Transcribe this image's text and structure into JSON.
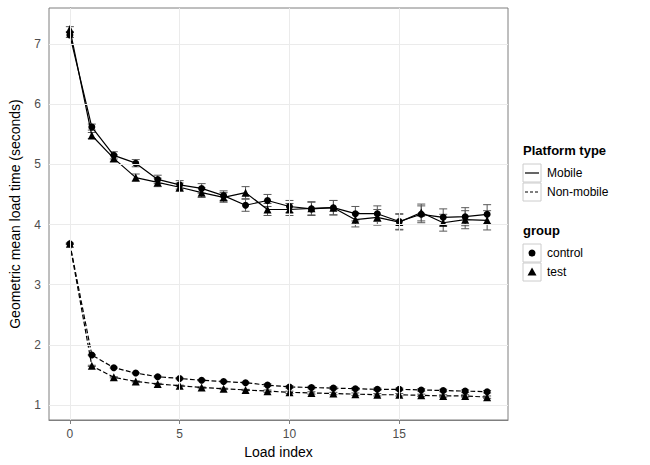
{
  "chart_data": {
    "type": "line",
    "x_label": "Load index",
    "y_label": "Geometric mean load time (seconds)",
    "x": [
      0,
      1,
      2,
      3,
      4,
      5,
      6,
      7,
      8,
      9,
      10,
      11,
      12,
      13,
      14,
      15,
      16,
      17,
      18,
      19
    ],
    "xlim": [
      -0.95,
      19.95
    ],
    "xticks": [
      0,
      5,
      10,
      15
    ],
    "ylim": [
      0.75,
      7.6
    ],
    "yticks": [
      1,
      2,
      3,
      4,
      5,
      6,
      7
    ],
    "grid": true,
    "legend": "right",
    "legend_groups": [
      {
        "title": "Platform type",
        "entries": [
          {
            "label": "Mobile",
            "line_style": "solid"
          },
          {
            "label": "Non-mobile",
            "line_style": "dashed"
          }
        ]
      },
      {
        "title": "group",
        "entries": [
          {
            "label": "control",
            "marker": "circle"
          },
          {
            "label": "test",
            "marker": "triangle"
          }
        ]
      }
    ],
    "series": [
      {
        "platform": "Mobile",
        "group": "control",
        "color": "#000000",
        "line_style": "solid",
        "marker": "circle",
        "values": [
          7.15,
          5.62,
          5.15,
          5.02,
          4.75,
          4.66,
          4.6,
          4.48,
          4.32,
          4.4,
          4.3,
          4.26,
          4.28,
          4.18,
          4.18,
          4.05,
          4.17,
          4.12,
          4.13,
          4.17
        ],
        "error": [
          0.04,
          0.05,
          0.06,
          0.06,
          0.07,
          0.07,
          0.08,
          0.08,
          0.1,
          0.1,
          0.1,
          0.11,
          0.12,
          0.12,
          0.13,
          0.13,
          0.14,
          0.14,
          0.15,
          0.16
        ]
      },
      {
        "platform": "Mobile",
        "group": "test",
        "color": "#000000",
        "line_style": "solid",
        "marker": "triangle",
        "values": [
          7.25,
          5.48,
          5.1,
          4.78,
          4.7,
          4.62,
          4.53,
          4.45,
          4.53,
          4.25,
          4.25,
          4.27,
          4.28,
          4.08,
          4.12,
          4.04,
          4.2,
          4.03,
          4.08,
          4.07
        ],
        "error": [
          0.04,
          0.05,
          0.06,
          0.06,
          0.07,
          0.07,
          0.08,
          0.08,
          0.1,
          0.1,
          0.1,
          0.11,
          0.12,
          0.12,
          0.13,
          0.13,
          0.14,
          0.14,
          0.15,
          0.16
        ]
      },
      {
        "platform": "Non-mobile",
        "group": "control",
        "color": "#000000",
        "line_style": "dashed",
        "marker": "circle",
        "values": [
          3.68,
          1.83,
          1.62,
          1.53,
          1.47,
          1.44,
          1.41,
          1.39,
          1.37,
          1.33,
          1.3,
          1.29,
          1.28,
          1.27,
          1.26,
          1.26,
          1.25,
          1.24,
          1.23,
          1.22
        ],
        "error": [
          0.01,
          0.01,
          0.01,
          0.01,
          0.01,
          0.01,
          0.01,
          0.01,
          0.01,
          0.02,
          0.02,
          0.02,
          0.02,
          0.02,
          0.02,
          0.02,
          0.02,
          0.02,
          0.02,
          0.02
        ]
      },
      {
        "platform": "Non-mobile",
        "group": "test",
        "color": "#000000",
        "line_style": "dashed",
        "marker": "triangle",
        "values": [
          3.68,
          1.65,
          1.46,
          1.39,
          1.35,
          1.32,
          1.29,
          1.27,
          1.25,
          1.23,
          1.21,
          1.2,
          1.19,
          1.18,
          1.17,
          1.17,
          1.16,
          1.15,
          1.15,
          1.13
        ],
        "error": [
          0.01,
          0.01,
          0.01,
          0.01,
          0.01,
          0.01,
          0.01,
          0.01,
          0.01,
          0.02,
          0.02,
          0.02,
          0.02,
          0.02,
          0.02,
          0.02,
          0.02,
          0.02,
          0.02,
          0.02
        ]
      }
    ]
  }
}
